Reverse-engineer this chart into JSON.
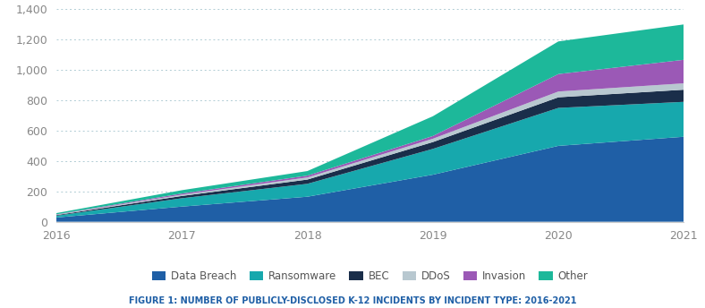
{
  "years": [
    2016,
    2017,
    2018,
    2019,
    2020,
    2021
  ],
  "series": {
    "Data Breach": [
      28,
      100,
      165,
      310,
      500,
      560
    ],
    "Ransomware": [
      12,
      55,
      85,
      170,
      250,
      230
    ],
    "BEC": [
      4,
      15,
      28,
      45,
      70,
      80
    ],
    "DDoS": [
      3,
      8,
      14,
      22,
      38,
      42
    ],
    "Invasion": [
      2,
      8,
      12,
      18,
      115,
      155
    ],
    "Other": [
      8,
      22,
      30,
      130,
      215,
      233
    ]
  },
  "colors": {
    "Data Breach": "#1F5FA6",
    "Ransomware": "#17A8AD",
    "BEC": "#1A2E4A",
    "DDoS": "#B8C8D0",
    "Invasion": "#9B59B6",
    "Other": "#1DB89A"
  },
  "ylim": [
    0,
    1400
  ],
  "yticks": [
    0,
    200,
    400,
    600,
    800,
    1000,
    1200,
    1400
  ],
  "tick_fontsize": 9,
  "title": "FIGURE 1: NUMBER OF PUBLICLY-DISCLOSED K-12 INCIDENTS BY INCIDENT TYPE: 2016-2021",
  "title_fontsize": 7,
  "background_color": "#ffffff",
  "grid_color": "#b0ccd4",
  "legend_order": [
    "Data Breach",
    "Ransomware",
    "BEC",
    "DDoS",
    "Invasion",
    "Other"
  ]
}
